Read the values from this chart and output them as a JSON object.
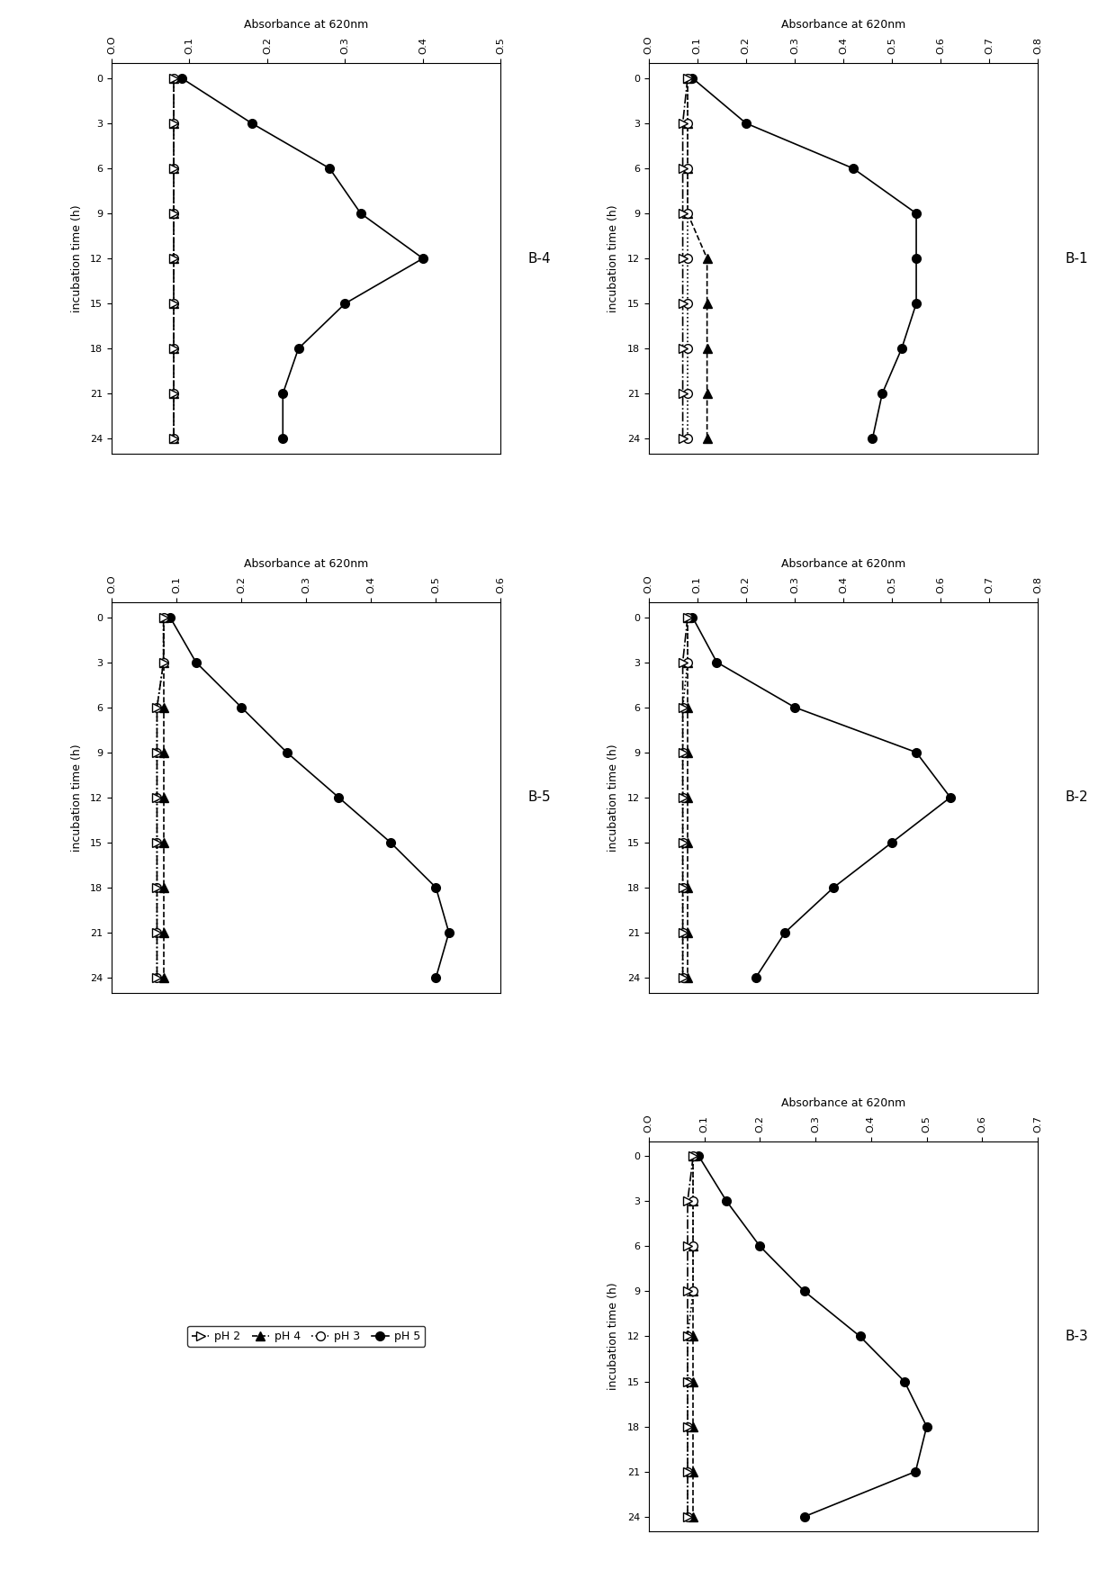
{
  "time": [
    0,
    3,
    6,
    9,
    12,
    15,
    18,
    21,
    24
  ],
  "panels": [
    {
      "label": "B-4",
      "row": 0,
      "col": 0,
      "xlim": [
        0,
        0.5
      ],
      "xticks": [
        0.0,
        0.1,
        0.2,
        0.3,
        0.4,
        0.5
      ],
      "pH2": [
        0.08,
        0.08,
        0.08,
        0.08,
        0.08,
        0.08,
        0.08,
        0.08,
        0.08
      ],
      "pH3": [
        0.08,
        0.08,
        0.08,
        0.08,
        0.08,
        0.08,
        0.08,
        0.08,
        0.08
      ],
      "pH4": [
        0.08,
        0.08,
        0.08,
        0.08,
        0.08,
        0.08,
        0.08,
        0.08,
        0.08
      ],
      "pH5": [
        0.09,
        0.18,
        0.28,
        0.32,
        0.4,
        0.3,
        0.24,
        0.22,
        0.22
      ]
    },
    {
      "label": "B-1",
      "row": 0,
      "col": 1,
      "xlim": [
        0,
        0.8
      ],
      "xticks": [
        0.0,
        0.1,
        0.2,
        0.3,
        0.4,
        0.5,
        0.6,
        0.7,
        0.8
      ],
      "pH2": [
        0.08,
        0.07,
        0.07,
        0.07,
        0.07,
        0.07,
        0.07,
        0.07,
        0.07
      ],
      "pH3": [
        0.08,
        0.08,
        0.08,
        0.08,
        0.08,
        0.08,
        0.08,
        0.08,
        0.08
      ],
      "pH4": [
        0.08,
        0.08,
        0.08,
        0.08,
        0.12,
        0.12,
        0.12,
        0.12,
        0.12
      ],
      "pH5": [
        0.09,
        0.2,
        0.42,
        0.55,
        0.55,
        0.55,
        0.52,
        0.48,
        0.46
      ]
    },
    {
      "label": "B-5",
      "row": 1,
      "col": 0,
      "xlim": [
        0,
        0.6
      ],
      "xticks": [
        0.0,
        0.1,
        0.2,
        0.3,
        0.4,
        0.5,
        0.6
      ],
      "pH2": [
        0.08,
        0.08,
        0.07,
        0.07,
        0.07,
        0.07,
        0.07,
        0.07,
        0.07
      ],
      "pH3": [
        0.08,
        0.08,
        0.07,
        0.07,
        0.07,
        0.07,
        0.07,
        0.07,
        0.07
      ],
      "pH4": [
        0.08,
        0.08,
        0.08,
        0.08,
        0.08,
        0.08,
        0.08,
        0.08,
        0.08
      ],
      "pH5": [
        0.09,
        0.13,
        0.2,
        0.27,
        0.35,
        0.43,
        0.5,
        0.52,
        0.5
      ]
    },
    {
      "label": "B-2",
      "row": 1,
      "col": 1,
      "xlim": [
        0,
        0.8
      ],
      "xticks": [
        0.0,
        0.1,
        0.2,
        0.3,
        0.4,
        0.5,
        0.6,
        0.7,
        0.8
      ],
      "pH2": [
        0.08,
        0.07,
        0.07,
        0.07,
        0.07,
        0.07,
        0.07,
        0.07,
        0.07
      ],
      "pH3": [
        0.08,
        0.08,
        0.07,
        0.07,
        0.07,
        0.07,
        0.07,
        0.07,
        0.07
      ],
      "pH4": [
        0.08,
        0.08,
        0.08,
        0.08,
        0.08,
        0.08,
        0.08,
        0.08,
        0.08
      ],
      "pH5": [
        0.09,
        0.14,
        0.3,
        0.55,
        0.62,
        0.5,
        0.38,
        0.28,
        0.22
      ]
    },
    {
      "label": "B-3",
      "row": 2,
      "col": 1,
      "xlim": [
        0,
        0.7
      ],
      "xticks": [
        0.0,
        0.1,
        0.2,
        0.3,
        0.4,
        0.5,
        0.6,
        0.7
      ],
      "pH2": [
        0.08,
        0.07,
        0.07,
        0.07,
        0.07,
        0.07,
        0.07,
        0.07,
        0.07
      ],
      "pH3": [
        0.08,
        0.08,
        0.08,
        0.08,
        0.07,
        0.07,
        0.07,
        0.07,
        0.07
      ],
      "pH4": [
        0.08,
        0.08,
        0.08,
        0.08,
        0.08,
        0.08,
        0.08,
        0.08,
        0.08
      ],
      "pH5": [
        0.09,
        0.14,
        0.2,
        0.28,
        0.38,
        0.46,
        0.5,
        0.48,
        0.28
      ]
    }
  ],
  "time_label": "incubation time (h)",
  "abs_label": "Absorbance at 620nm",
  "background_color": "#ffffff"
}
